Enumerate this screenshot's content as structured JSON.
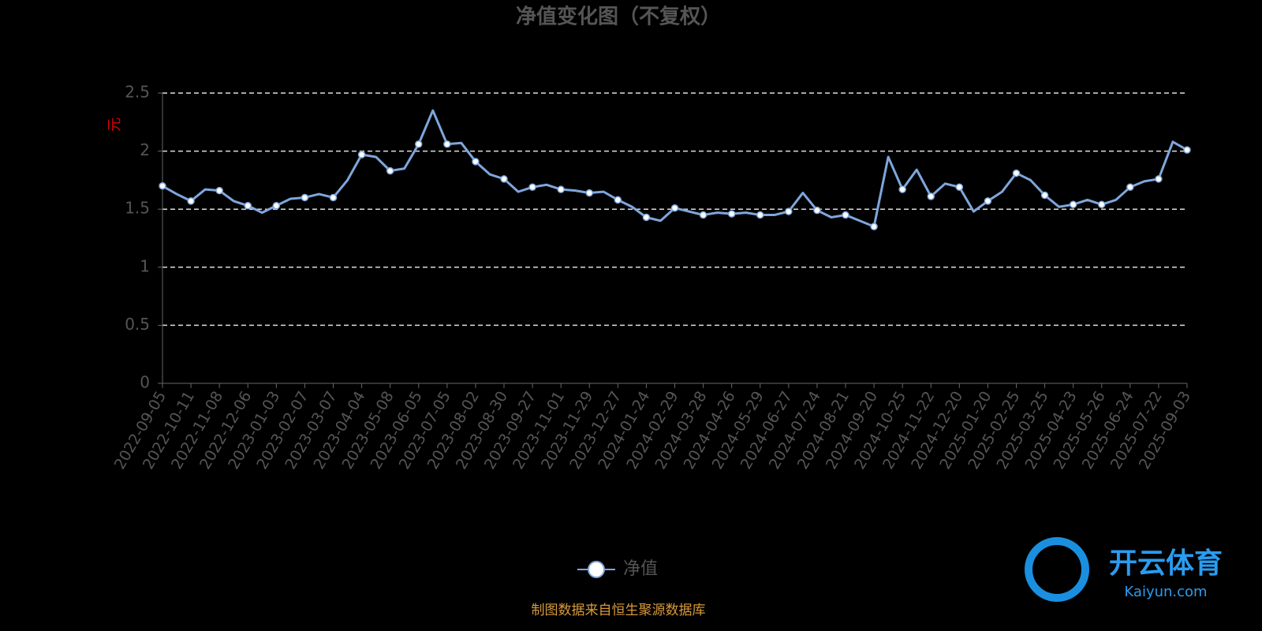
{
  "chart_data": {
    "type": "line",
    "title": "净值变化图（不复权）",
    "y_label": "元",
    "categories": [
      "2022-09-05",
      null,
      "2022-10-11",
      null,
      "2022-11-08",
      null,
      "2022-12-06",
      null,
      "2023-01-03",
      null,
      "2023-02-07",
      null,
      "2023-03-07",
      null,
      "2023-04-04",
      null,
      "2023-05-08",
      null,
      "2023-06-05",
      null,
      "2023-07-05",
      null,
      "2023-08-02",
      null,
      "2023-08-30",
      null,
      "2023-09-27",
      null,
      "2023-11-01",
      null,
      "2023-11-29",
      null,
      "2023-12-27",
      null,
      "2024-01-24",
      null,
      "2024-02-29",
      null,
      "2024-03-28",
      null,
      "2024-04-26",
      null,
      "2024-05-29",
      null,
      "2024-06-27",
      null,
      "2024-07-24",
      null,
      "2024-08-21",
      null,
      "2024-09-20",
      null,
      "2024-10-25",
      null,
      "2024-11-22",
      null,
      "2024-12-20",
      null,
      "2025-01-20",
      null,
      "2025-02-25",
      null,
      "2025-03-25",
      null,
      "2025-04-23",
      null,
      "2025-05-26",
      null,
      "2025-06-24",
      null,
      "2025-07-22",
      null,
      "2025-09-03"
    ],
    "series": [
      {
        "name": "净值",
        "color": "#7ea6dc",
        "values": [
          1.7,
          1.63,
          1.57,
          1.67,
          1.66,
          1.57,
          1.53,
          1.47,
          1.53,
          1.59,
          1.6,
          1.63,
          1.6,
          1.75,
          1.97,
          1.95,
          1.83,
          1.85,
          2.06,
          2.35,
          2.06,
          2.07,
          1.91,
          1.8,
          1.76,
          1.65,
          1.69,
          1.71,
          1.67,
          1.66,
          1.64,
          1.65,
          1.58,
          1.52,
          1.43,
          1.4,
          1.51,
          1.48,
          1.45,
          1.47,
          1.46,
          1.47,
          1.45,
          1.45,
          1.48,
          1.64,
          1.49,
          1.43,
          1.45,
          1.4,
          1.35,
          1.95,
          1.67,
          1.84,
          1.61,
          1.72,
          1.69,
          1.48,
          1.57,
          1.65,
          1.81,
          1.75,
          1.62,
          1.52,
          1.54,
          1.58,
          1.54,
          1.58,
          1.69,
          1.74,
          1.76,
          2.08,
          2.01
        ]
      }
    ],
    "ylim": [
      0,
      2.5
    ],
    "yticks": [
      0,
      0.5,
      1,
      1.5,
      2,
      2.5
    ],
    "grid": true,
    "source": "制图数据来自恒生聚源数据库"
  },
  "watermark": {
    "name": "开云体育",
    "site": "Kaiyun.com"
  }
}
